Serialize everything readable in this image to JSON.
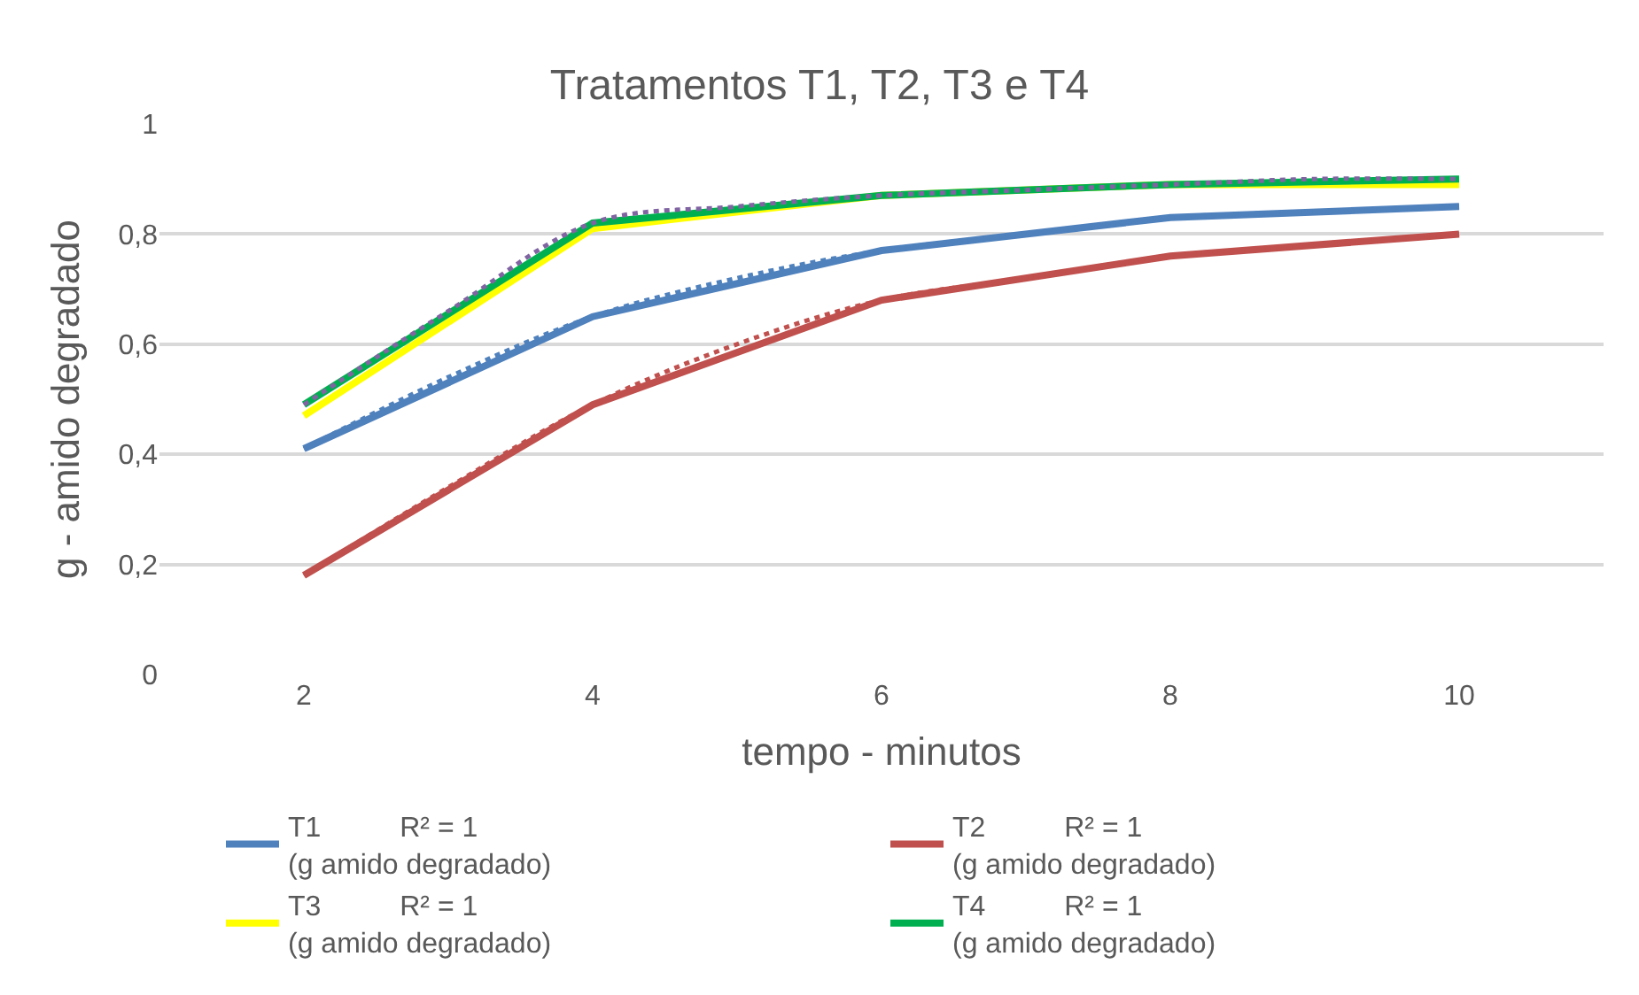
{
  "chart_data": {
    "type": "line",
    "title": "Tratamentos T1, T2, T3 e T4",
    "xlabel": "tempo - minutos",
    "ylabel": "g - amido degradado",
    "x": [
      2,
      4,
      6,
      8,
      10
    ],
    "series": [
      {
        "name": "T1          R² = 1\n(g amido degradado)",
        "color": "#4f81bd",
        "values": [
          0.41,
          0.65,
          0.77,
          0.83,
          0.85
        ]
      },
      {
        "name": "T2          R² = 1\n(g amido degradado)",
        "color": "#c0504d",
        "values": [
          0.18,
          0.49,
          0.68,
          0.76,
          0.8
        ]
      },
      {
        "name": "T3          R² = 1\n(g amido degradado)",
        "color": "#ffff00",
        "values": [
          0.47,
          0.81,
          0.87,
          0.89,
          0.89
        ]
      },
      {
        "name": "T4          R² = 1\n(g amido degradado)",
        "color": "#00b050",
        "values": [
          0.49,
          0.82,
          0.87,
          0.89,
          0.9
        ]
      },
      {
        "color": "#4f81bd",
        "line_style": "dotted",
        "x": [
          2,
          3,
          4,
          5,
          6,
          7,
          8,
          9,
          10
        ],
        "values": [
          0.41,
          0.54,
          0.65,
          0.72,
          0.77,
          0.8,
          0.83,
          0.84,
          0.85
        ]
      },
      {
        "color": "#c0504d",
        "line_style": "dotted",
        "x": [
          2,
          3,
          4,
          5,
          6,
          7,
          8,
          9,
          10
        ],
        "values": [
          0.18,
          0.34,
          0.49,
          0.6,
          0.68,
          0.72,
          0.76,
          0.78,
          0.8
        ]
      },
      {
        "color": "#8064a2",
        "line_style": "dotted",
        "x": [
          2,
          3,
          4,
          5,
          6,
          7,
          8,
          9,
          10
        ],
        "values": [
          0.49,
          0.66,
          0.82,
          0.85,
          0.87,
          0.88,
          0.89,
          0.9,
          0.9
        ]
      }
    ],
    "xlim": [
      1,
      11
    ],
    "xticks": [
      2,
      4,
      6,
      8,
      10
    ],
    "ylim": [
      0,
      1
    ],
    "yticks": [
      0,
      {
        "value": 0.2,
        "label": "0,2"
      },
      {
        "value": 0.4,
        "label": "0,4"
      },
      {
        "value": 0.6,
        "label": "0,6"
      },
      {
        "value": 0.8,
        "label": "0,8"
      },
      1
    ],
    "grid": "y",
    "legend": "bottom",
    "line_style": "solid",
    "marker": "none"
  }
}
